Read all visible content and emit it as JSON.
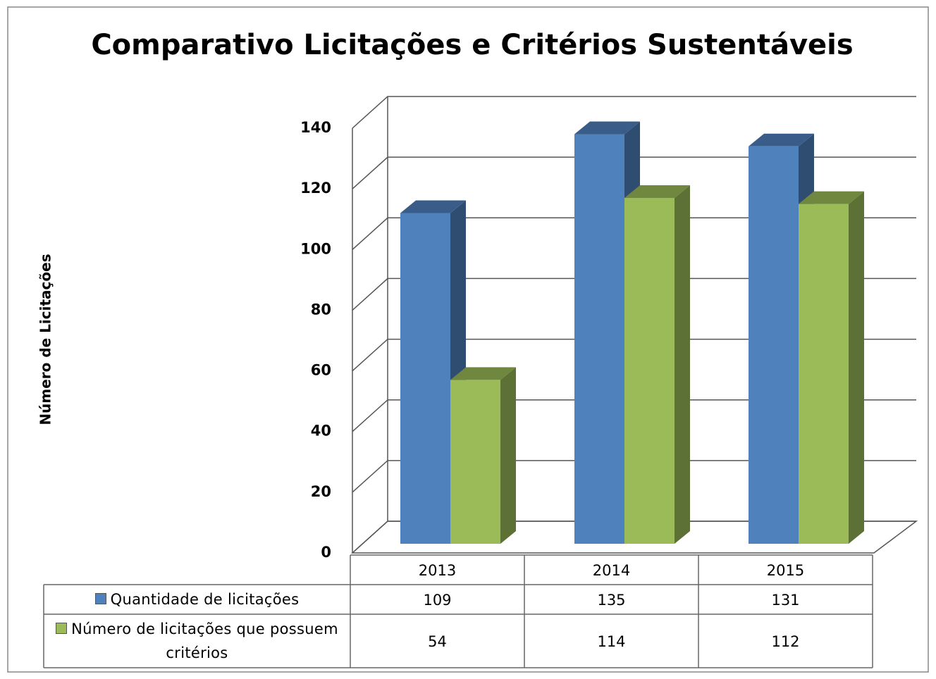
{
  "chart_data": {
    "type": "bar3d",
    "title": "Comparativo Licitações e Critérios Sustentáveis",
    "y_label": "Número de Licitações",
    "categories": [
      "2013",
      "2014",
      "2015"
    ],
    "series": [
      {
        "name": "Quantidade de licitações",
        "color": "#4f81bd",
        "values": [
          109,
          135,
          131
        ]
      },
      {
        "name": "Número de licitações que possuem critérios",
        "color": "#9bbb59",
        "values": [
          54,
          114,
          112
        ]
      }
    ],
    "ylim": [
      0,
      140
    ],
    "yticks": [
      0,
      20,
      40,
      60,
      80,
      100,
      120,
      140
    ],
    "grid": true,
    "data_table": true
  }
}
